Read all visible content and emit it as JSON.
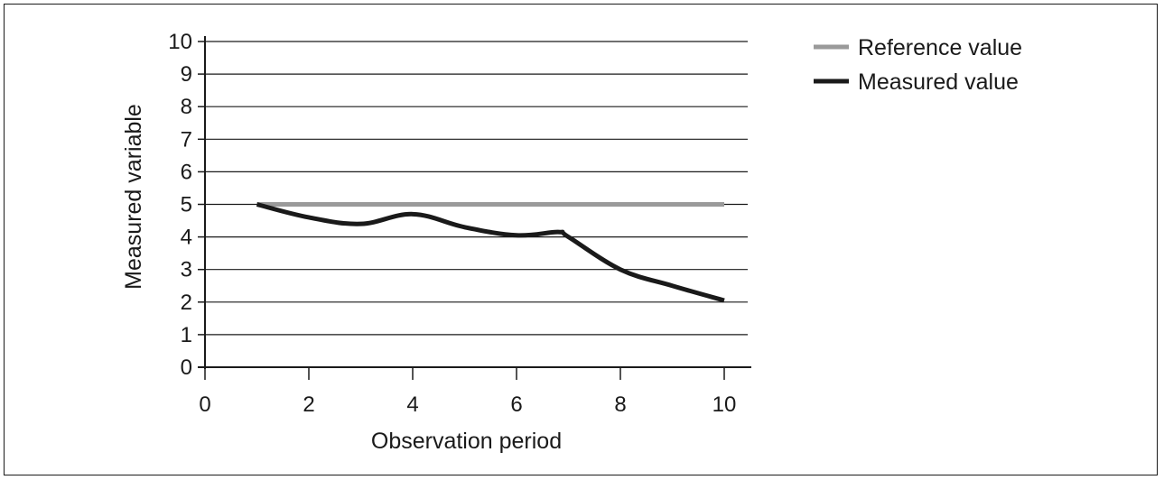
{
  "chart_data": {
    "type": "line",
    "xlabel": "Observation period",
    "ylabel": "Measured variable",
    "xlim": [
      0,
      10
    ],
    "ylim": [
      0,
      10
    ],
    "x_ticks": [
      "0",
      "2",
      "4",
      "6",
      "8",
      "10"
    ],
    "y_ticks": [
      "0",
      "1",
      "2",
      "3",
      "4",
      "5",
      "6",
      "7",
      "8",
      "9",
      "10"
    ],
    "grid": "horizontal",
    "legend_position": "top-right",
    "series": [
      {
        "name": "Reference value",
        "color": "#9a9a9a",
        "x": [
          1,
          10
        ],
        "y": [
          5.0,
          5.0
        ]
      },
      {
        "name": "Measured value",
        "color": "#1a1a1a",
        "x": [
          1,
          2,
          3,
          4,
          5,
          6,
          6.8,
          7,
          8,
          9,
          10
        ],
        "y": [
          5.0,
          4.6,
          4.4,
          4.7,
          4.3,
          4.05,
          4.15,
          4.0,
          3.0,
          2.5,
          2.05
        ]
      }
    ]
  }
}
